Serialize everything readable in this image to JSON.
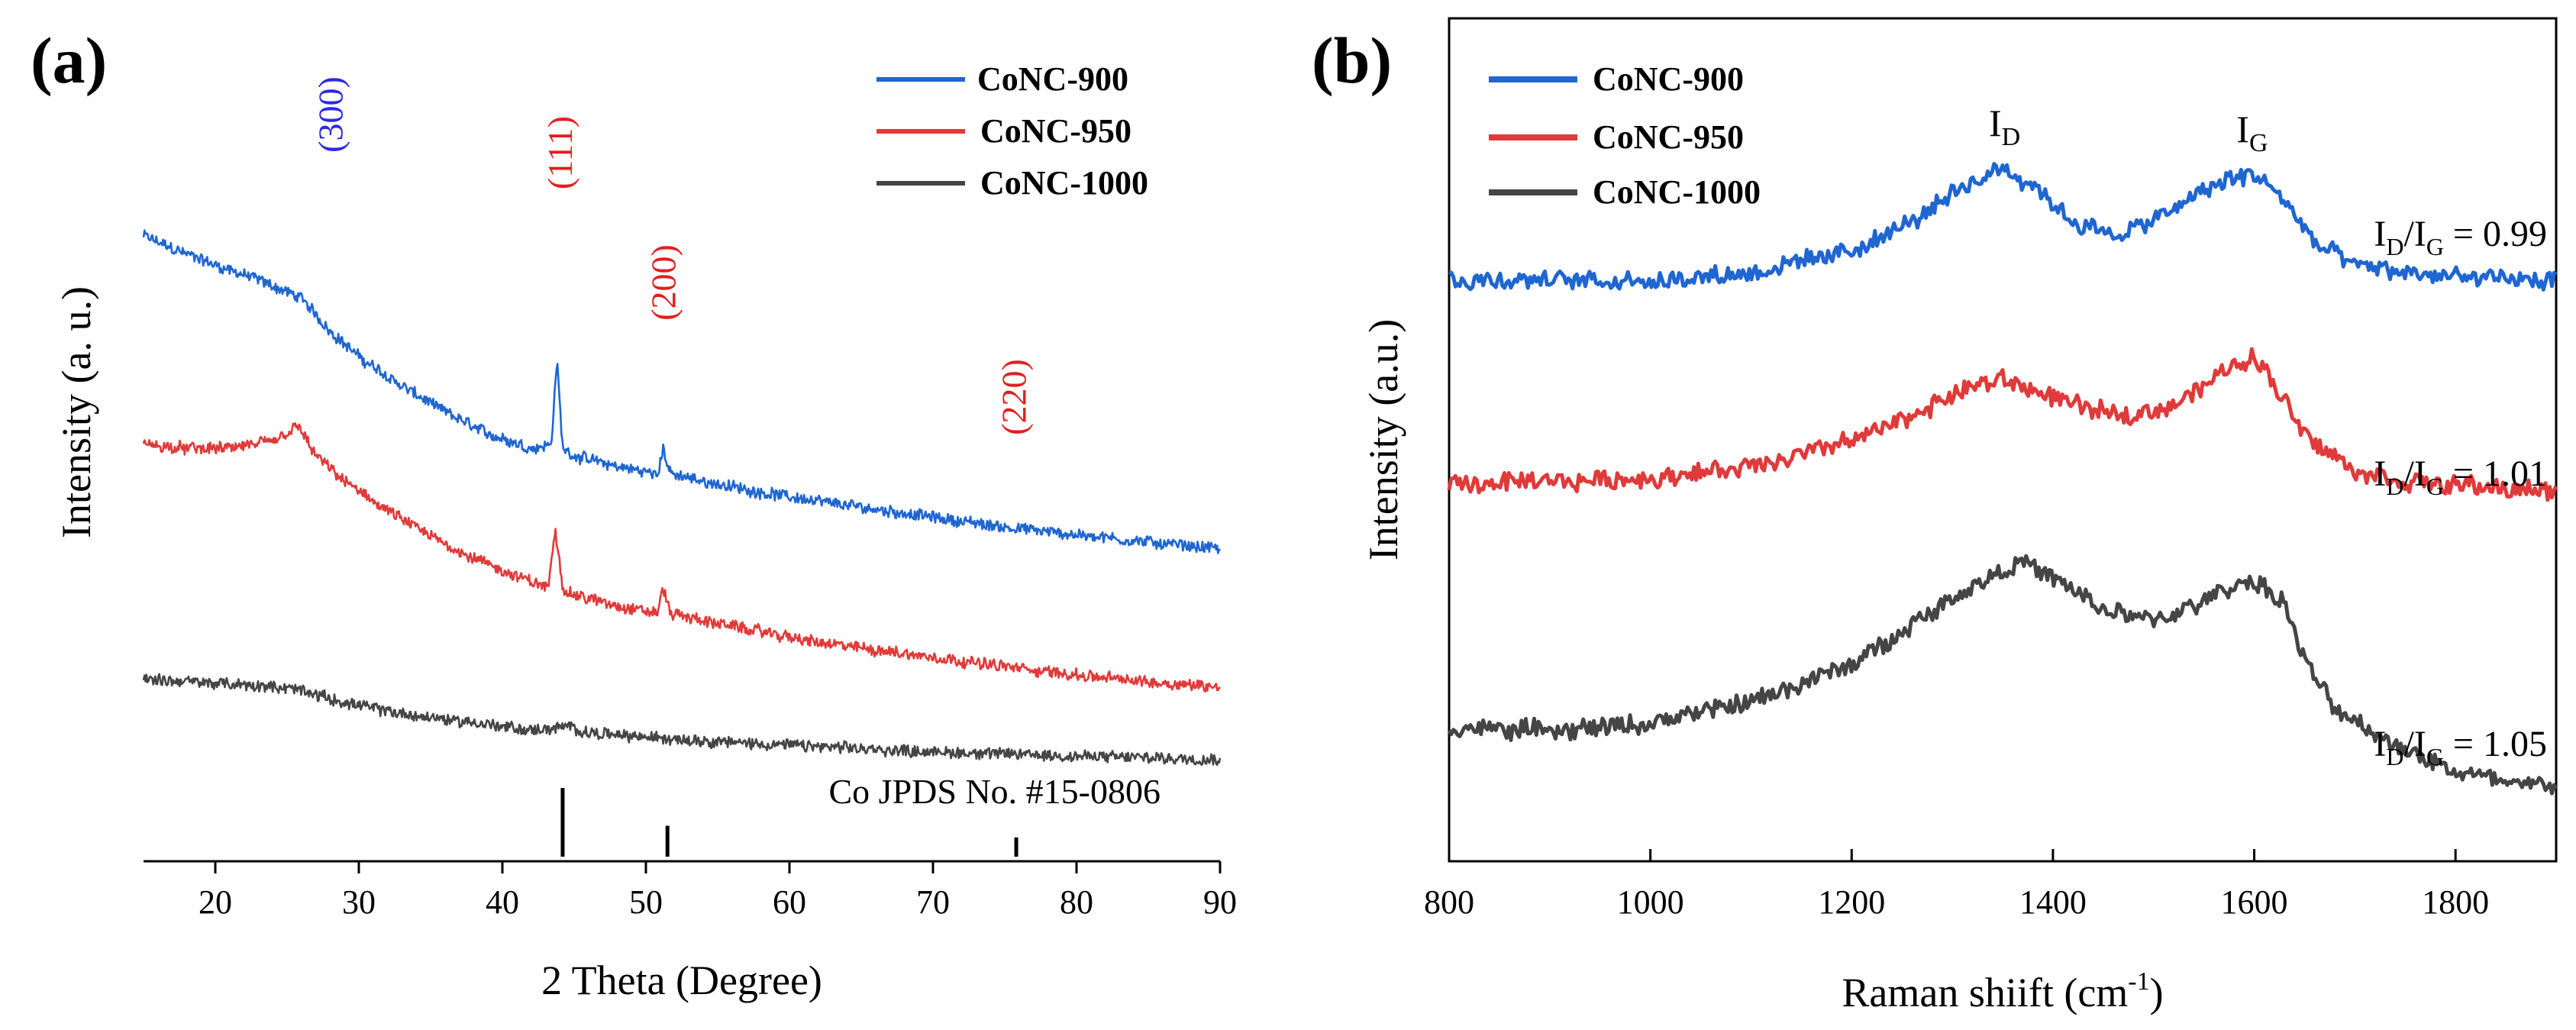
{
  "chart_data": [
    {
      "type": "line",
      "panel_label": "(a)",
      "xlabel": "2 Theta (Degree)",
      "ylabel": "Intensity (a. u.)",
      "xlim": [
        15,
        90
      ],
      "xticks": [
        20,
        30,
        40,
        50,
        60,
        70,
        80,
        90
      ],
      "yticks_shown": false,
      "series": [
        {
          "name": "CoNC-900",
          "color": "#1f66d1",
          "x": [
            15,
            18,
            20,
            23,
            26,
            28,
            30,
            33,
            36,
            39,
            42,
            43.4,
            43.8,
            44.2,
            45,
            48,
            50.8,
            51.2,
            51.7,
            54,
            58,
            62,
            66,
            70,
            74,
            78,
            82,
            86,
            90
          ],
          "y": [
            8.2,
            7.95,
            7.8,
            7.6,
            7.35,
            6.9,
            6.55,
            6.15,
            5.8,
            5.5,
            5.3,
            5.35,
            6.5,
            5.3,
            5.2,
            5.05,
            4.95,
            5.3,
            4.95,
            4.85,
            4.7,
            4.58,
            4.47,
            4.36,
            4.25,
            4.16,
            4.08,
            4.0,
            3.93
          ]
        },
        {
          "name": "CoNC-950",
          "color": "#e03a3a",
          "x": [
            15,
            18,
            21,
            24,
            25.8,
            27,
            29,
            32,
            35,
            38,
            41,
            43.2,
            43.7,
            44.2,
            45,
            48,
            50.8,
            51.2,
            51.7,
            54,
            58,
            62,
            66,
            70,
            74,
            78,
            82,
            86,
            90
          ],
          "y": [
            5.35,
            5.3,
            5.3,
            5.4,
            5.6,
            5.2,
            4.85,
            4.45,
            4.1,
            3.8,
            3.55,
            3.4,
            4.2,
            3.4,
            3.3,
            3.15,
            3.05,
            3.4,
            3.05,
            2.95,
            2.8,
            2.65,
            2.55,
            2.45,
            2.35,
            2.25,
            2.17,
            2.1,
            2.05
          ]
        },
        {
          "name": "CoNC-1000",
          "color": "#454545",
          "x": [
            15,
            18,
            21,
            24,
            26,
            28,
            31,
            34,
            38,
            42,
            44.8,
            46,
            50,
            55,
            60,
            65,
            70,
            75,
            80,
            85,
            90
          ],
          "y": [
            2.15,
            2.12,
            2.08,
            2.05,
            2.0,
            1.88,
            1.75,
            1.65,
            1.56,
            1.45,
            1.5,
            1.42,
            1.36,
            1.3,
            1.25,
            1.2,
            1.16,
            1.13,
            1.1,
            1.08,
            1.06
          ]
        }
      ],
      "peak_labels": [
        {
          "text": "(300)",
          "x": 28,
          "color": "#2a2ae0"
        },
        {
          "text": "(111)",
          "x": 44,
          "color": "#e02020"
        },
        {
          "text": "(200)",
          "x": 51.2,
          "color": "#e02020"
        },
        {
          "text": "(220)",
          "x": 75.6,
          "color": "#e02020"
        }
      ],
      "reference": {
        "label": "Co JPDS No. #15-0806",
        "peaks": [
          {
            "x": 44.2,
            "relative_intensity": 1.0
          },
          {
            "x": 51.5,
            "relative_intensity": 0.45
          },
          {
            "x": 75.8,
            "relative_intensity": 0.28
          }
        ]
      },
      "legend": [
        "CoNC-900",
        "CoNC-950",
        "CoNC-1000"
      ],
      "legend_position": "top-right"
    },
    {
      "type": "line",
      "panel_label": "(b)",
      "xlabel": "Raman shiift (cm",
      "xlabel_sup": "-1",
      "xlabel_end": ")",
      "ylabel": "Intensity (a.u.)",
      "xlim": [
        800,
        1900
      ],
      "xticks": [
        800,
        1000,
        1200,
        1400,
        1600,
        1800
      ],
      "yticks_shown": false,
      "series": [
        {
          "name": "CoNC-900",
          "color": "#1f66d1",
          "ratio_main": "I",
          "ratio_sub1": "D",
          "ratio_mid": "/I",
          "ratio_sub2": "G",
          "ratio_value": " = 0.99",
          "x": [
            800,
            900,
            1000,
            1100,
            1200,
            1260,
            1310,
            1350,
            1380,
            1420,
            1460,
            1500,
            1540,
            1570,
            1600,
            1630,
            1660,
            1700,
            1750,
            1800,
            1850,
            1900
          ],
          "y": [
            7.7,
            7.7,
            7.7,
            7.8,
            8.1,
            8.5,
            8.95,
            9.25,
            9.0,
            8.5,
            8.3,
            8.5,
            8.85,
            9.05,
            9.15,
            8.8,
            8.2,
            7.9,
            7.8,
            7.75,
            7.7,
            7.7
          ]
        },
        {
          "name": "CoNC-950",
          "color": "#e03a3a",
          "ratio_main": "I",
          "ratio_sub1": "D",
          "ratio_mid": "/I",
          "ratio_sub2": "G",
          "ratio_value": " = 1.01",
          "x": [
            800,
            900,
            1000,
            1100,
            1200,
            1260,
            1310,
            1350,
            1390,
            1430,
            1470,
            1510,
            1550,
            1580,
            1600,
            1620,
            1650,
            1700,
            1750,
            1800,
            1850,
            1900
          ],
          "y": [
            4.9,
            4.95,
            5.0,
            5.15,
            5.5,
            5.85,
            6.2,
            6.35,
            6.15,
            5.95,
            5.85,
            5.95,
            6.25,
            6.55,
            6.65,
            6.3,
            5.6,
            5.1,
            4.95,
            4.9,
            4.85,
            4.8
          ]
        },
        {
          "name": "CoNC-1000",
          "color": "#454545",
          "ratio_main": "I",
          "ratio_sub1": "D",
          "ratio_mid": "/I",
          "ratio_sub2": "G",
          "ratio_value": " = 1.05",
          "x": [
            800,
            900,
            1000,
            1100,
            1200,
            1260,
            1310,
            1350,
            1370,
            1410,
            1450,
            1500,
            1540,
            1580,
            1600,
            1630,
            1650,
            1680,
            1720,
            1760,
            1800,
            1850,
            1900
          ],
          "y": [
            1.6,
            1.55,
            1.65,
            1.95,
            2.45,
            3.0,
            3.45,
            3.75,
            3.85,
            3.55,
            3.2,
            3.05,
            3.25,
            3.55,
            3.6,
            3.3,
            2.5,
            1.85,
            1.5,
            1.25,
            1.0,
            0.85,
            0.8
          ]
        }
      ],
      "band_labels": [
        {
          "main": "I",
          "sub": "D",
          "x": 1352
        },
        {
          "main": "I",
          "sub": "G",
          "x": 1598
        }
      ],
      "legend": [
        "CoNC-900",
        "CoNC-950",
        "CoNC-1000"
      ],
      "legend_position": "top-left"
    }
  ]
}
